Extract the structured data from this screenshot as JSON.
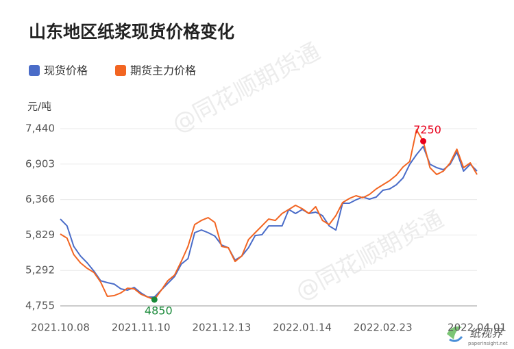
{
  "chart_data": {
    "type": "line",
    "title": "山东地区纸浆现货价格变化",
    "y_unit": "元/吨",
    "watermark": "@同花顺期货通",
    "logo": {
      "name": "纸视界",
      "site": "paperinsight.net"
    },
    "categories": [
      "2021.10.08",
      null,
      null,
      null,
      null,
      null,
      null,
      null,
      null,
      null,
      null,
      null,
      "2021.11.10",
      null,
      null,
      null,
      null,
      null,
      null,
      null,
      null,
      null,
      null,
      null,
      "2021.12.13",
      null,
      null,
      null,
      null,
      null,
      null,
      null,
      null,
      null,
      null,
      null,
      "2022.01.14",
      null,
      null,
      null,
      null,
      null,
      null,
      null,
      null,
      null,
      null,
      null,
      "2022.02.23",
      null,
      null,
      null,
      null,
      null,
      null,
      null,
      null,
      null,
      null,
      null,
      null,
      null,
      "2022.04.01"
    ],
    "series": [
      {
        "name": "现货价格",
        "color": "#4a6cc8",
        "values": [
          6071,
          5967,
          5656,
          5511,
          5407,
          5283,
          5137,
          5107,
          5086,
          5013,
          4993,
          5034,
          4951,
          4889,
          4889,
          4993,
          5097,
          5200,
          5387,
          5470,
          5864,
          5905,
          5864,
          5812,
          5677,
          5636,
          5449,
          5511,
          5636,
          5822,
          5833,
          5967,
          5967,
          5967,
          6216,
          6154,
          6216,
          6154,
          6175,
          6123,
          5967,
          5905,
          6310,
          6310,
          6362,
          6403,
          6372,
          6403,
          6507,
          6527,
          6590,
          6694,
          6901,
          7046,
          7170,
          6901,
          6849,
          6818,
          6901,
          7087,
          6797,
          6901,
          6797
        ]
      },
      {
        "name": "期货主力价格",
        "color": "#f26522",
        "values": [
          5843,
          5781,
          5532,
          5407,
          5324,
          5262,
          5117,
          4900,
          4910,
          4951,
          5024,
          5013,
          4931,
          4889,
          4850,
          4990,
          5138,
          5221,
          5428,
          5656,
          5988,
          6050,
          6092,
          6019,
          5656,
          5636,
          5428,
          5511,
          5760,
          5864,
          5967,
          6071,
          6050,
          6154,
          6216,
          6279,
          6227,
          6154,
          6258,
          6050,
          5988,
          6123,
          6320,
          6382,
          6424,
          6393,
          6444,
          6527,
          6590,
          6652,
          6735,
          6859,
          6942,
          7420,
          7250,
          6849,
          6745,
          6797,
          6922,
          7129,
          6849,
          6922,
          6745
        ]
      }
    ],
    "annotations": [
      {
        "series": 1,
        "index": 14,
        "color": "#1a8a3a"
      },
      {
        "series": 1,
        "index": 54,
        "color": "#e8001c"
      }
    ],
    "ylim": [
      4755,
      7440
    ],
    "yticks": [
      {
        "value": 4755,
        "label": "4,755"
      },
      {
        "value": 5292,
        "label": "5,292"
      },
      {
        "value": 5829,
        "label": "5,829"
      },
      {
        "value": 6366,
        "label": "6,366"
      },
      {
        "value": 6903,
        "label": "6,903"
      },
      {
        "value": 7440,
        "label": "7,440"
      }
    ],
    "grid": true
  }
}
